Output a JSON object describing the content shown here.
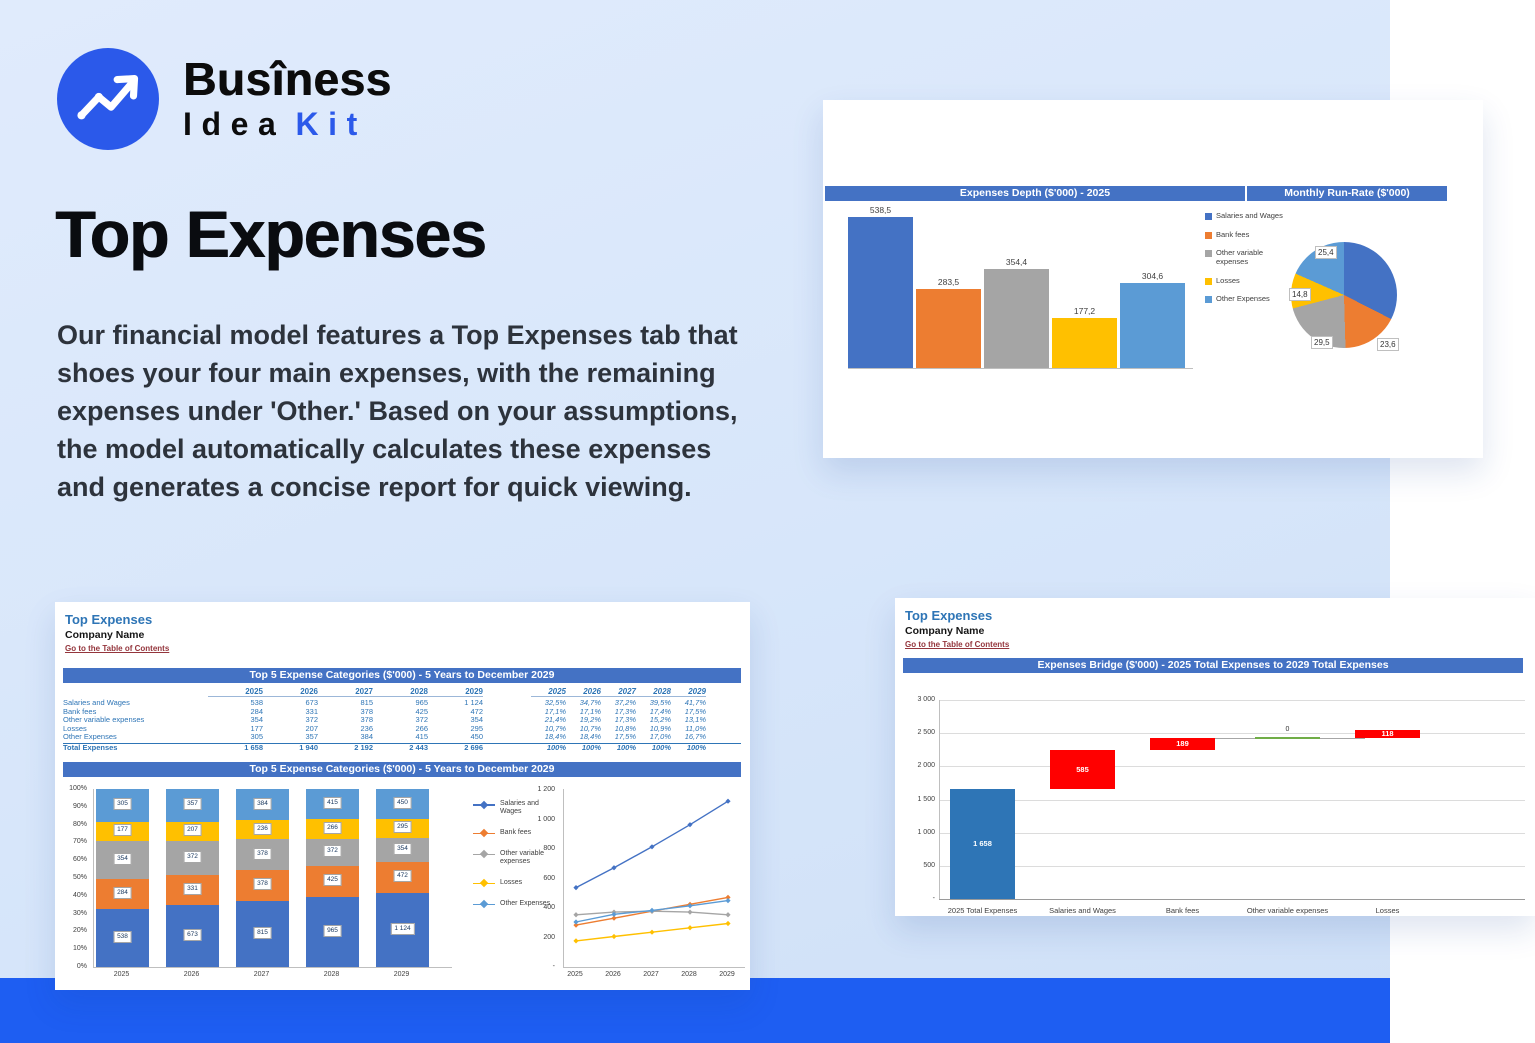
{
  "hero": {
    "logo": {
      "word1": "Busîness",
      "word2": "Idea",
      "word3": "Kit",
      "accent_color": "#2b59ea"
    },
    "title": "Top Expenses",
    "description": "Our financial model features a Top Expenses tab that shoes your four main expenses, with the remaining expenses under 'Other.' Based on your assumptions, the model automatically calculates these expenses and generates a concise report for quick viewing."
  },
  "depth_card": {
    "bar_header": "Expenses Depth ($'000) - 2025",
    "pie_header": "Monthly Run-Rate ($'000)"
  },
  "five_year_card": {
    "title": "Top Expenses",
    "company": "Company Name",
    "toc_link": "Go to the Table of Contents",
    "table_header": "Top 5 Expense Categories ($'000) - 5 Years to December 2029",
    "chart_header": "Top 5 Expense Categories ($'000) - 5 Years to December 2029",
    "years": [
      "2025",
      "2026",
      "2027",
      "2028",
      "2029"
    ],
    "rows": [
      {
        "label": "Salaries and Wages",
        "values": [
          "538",
          "673",
          "815",
          "965",
          "1 124"
        ],
        "pct": [
          "32,5%",
          "34,7%",
          "37,2%",
          "39,5%",
          "41,7%"
        ]
      },
      {
        "label": "Bank fees",
        "values": [
          "284",
          "331",
          "378",
          "425",
          "472"
        ],
        "pct": [
          "17,1%",
          "17,1%",
          "17,3%",
          "17,4%",
          "17,5%"
        ]
      },
      {
        "label": "Other variable expenses",
        "values": [
          "354",
          "372",
          "378",
          "372",
          "354"
        ],
        "pct": [
          "21,4%",
          "19,2%",
          "17,3%",
          "15,2%",
          "13,1%"
        ]
      },
      {
        "label": "Losses",
        "values": [
          "177",
          "207",
          "236",
          "266",
          "295"
        ],
        "pct": [
          "10,7%",
          "10,7%",
          "10,8%",
          "10,9%",
          "11,0%"
        ]
      },
      {
        "label": "Other Expenses",
        "values": [
          "305",
          "357",
          "384",
          "415",
          "450"
        ],
        "pct": [
          "18,4%",
          "18,4%",
          "17,5%",
          "17,0%",
          "16,7%"
        ]
      }
    ],
    "total": {
      "label": "Total Expenses",
      "values": [
        "1 658",
        "1 940",
        "2 192",
        "2 443",
        "2 696"
      ],
      "pct": [
        "100%",
        "100%",
        "100%",
        "100%",
        "100%"
      ]
    }
  },
  "bridge_card": {
    "title": "Top Expenses",
    "company": "Company Name",
    "toc_link": "Go to the Table of Contents",
    "header": "Expenses Bridge ($'000) - 2025 Total Expenses to 2029 Total Expenses"
  },
  "chart_data": [
    {
      "id": "expenses-depth-bar",
      "type": "bar",
      "title": "Expenses Depth ($'000) - 2025",
      "categories": [
        "Salaries and Wages",
        "Bank fees",
        "Other variable expenses",
        "Losses",
        "Other Expenses"
      ],
      "values": [
        538.5,
        283.5,
        354.4,
        177.2,
        304.6
      ],
      "labels": [
        "538,5",
        "283,5",
        "354,4",
        "177,2",
        "304,6"
      ],
      "colors": [
        "#4472C4",
        "#ED7D31",
        "#A5A5A5",
        "#FFC000",
        "#5B9BD5"
      ],
      "ylim": [
        0,
        600
      ],
      "grid": false,
      "legend_position": "right"
    },
    {
      "id": "monthly-run-rate-pie",
      "type": "pie",
      "title": "Monthly Run-Rate ($'000)",
      "labels": [
        "Salaries and Wages",
        "Bank fees",
        "Other variable expenses",
        "Losses",
        "Other Expenses"
      ],
      "values": [
        44.9,
        23.6,
        29.5,
        14.8,
        25.4
      ],
      "visible_labels": [
        "25,4",
        "14,8",
        "29,5",
        "23,6"
      ],
      "visible_label_slices": [
        "Other Expenses",
        "Losses",
        "Other variable expenses",
        "Bank fees"
      ],
      "colors": [
        "#4472C4",
        "#ED7D31",
        "#A5A5A5",
        "#FFC000",
        "#5B9BD5"
      ]
    },
    {
      "id": "five-year-stacked-bars",
      "type": "bar",
      "subtype": "stacked-100pct",
      "title": "Top 5 Expense Categories ($'000) - 5 Years to December 2029",
      "categories": [
        "2025",
        "2026",
        "2027",
        "2028",
        "2029"
      ],
      "series": [
        {
          "name": "Salaries and Wages",
          "color": "#4472C4",
          "values": [
            538,
            673,
            815,
            965,
            1124
          ],
          "labels": [
            "538",
            "673",
            "815",
            "965",
            "1 124"
          ]
        },
        {
          "name": "Bank fees",
          "color": "#ED7D31",
          "values": [
            284,
            331,
            378,
            425,
            472
          ],
          "labels": [
            "284",
            "331",
            "378",
            "425",
            "472"
          ]
        },
        {
          "name": "Other variable expenses",
          "color": "#A5A5A5",
          "values": [
            354,
            372,
            378,
            372,
            354
          ],
          "labels": [
            "354",
            "372",
            "378",
            "372",
            "354"
          ]
        },
        {
          "name": "Losses",
          "color": "#FFC000",
          "values": [
            177,
            207,
            236,
            266,
            295
          ],
          "labels": [
            "177",
            "207",
            "236",
            "266",
            "295"
          ]
        },
        {
          "name": "Other Expenses",
          "color": "#5B9BD5",
          "values": [
            305,
            357,
            384,
            415,
            450
          ],
          "labels": [
            "305",
            "357",
            "384",
            "415",
            "450"
          ]
        }
      ],
      "yticks": [
        "100%",
        "90%",
        "80%",
        "70%",
        "60%",
        "50%",
        "40%",
        "30%",
        "20%",
        "10%",
        "0%"
      ],
      "grid": false
    },
    {
      "id": "five-year-lines",
      "type": "line",
      "x": [
        "2025",
        "2026",
        "2027",
        "2028",
        "2029"
      ],
      "series": [
        {
          "name": "Salaries and Wages",
          "color": "#4472C4",
          "values": [
            538,
            673,
            815,
            965,
            1124
          ]
        },
        {
          "name": "Bank fees",
          "color": "#ED7D31",
          "values": [
            284,
            331,
            378,
            425,
            472
          ]
        },
        {
          "name": "Other variable expenses",
          "color": "#A5A5A5",
          "values": [
            354,
            372,
            378,
            372,
            354
          ]
        },
        {
          "name": "Losses",
          "color": "#FFC000",
          "values": [
            177,
            207,
            236,
            266,
            295
          ]
        },
        {
          "name": "Other Expenses",
          "color": "#5B9BD5",
          "values": [
            305,
            357,
            384,
            415,
            450
          ]
        }
      ],
      "ylim": [
        0,
        1200
      ],
      "ytick_labels": [
        "1 200",
        "1 000",
        "800",
        "600",
        "400",
        "200",
        "-"
      ],
      "ytick_values": [
        1200,
        1000,
        800,
        600,
        400,
        200,
        0
      ],
      "legend_position": "left"
    },
    {
      "id": "expenses-bridge-waterfall",
      "type": "bar",
      "subtype": "waterfall",
      "title": "Expenses Bridge ($'000) - 2025 Total Expenses to 2029 Total Expenses",
      "categories": [
        "2025 Total Expenses",
        "Salaries and Wages",
        "Bank fees",
        "Other variable expenses",
        "Losses"
      ],
      "values": [
        1658,
        585,
        189,
        0,
        118
      ],
      "labels": [
        "1 658",
        "585",
        "189",
        "0",
        "118"
      ],
      "bar_roles": [
        "base",
        "increase",
        "increase",
        "zero",
        "increase"
      ],
      "colors": {
        "base": "#2E75B6",
        "increase": "#FF0000",
        "zero": "#70AD47"
      },
      "ylim": [
        0,
        3000
      ],
      "yticks": [
        {
          "label": "3 000",
          "value": 3000
        },
        {
          "label": "2 500",
          "value": 2500
        },
        {
          "label": "2 000",
          "value": 2000
        },
        {
          "label": "1 500",
          "value": 1500
        },
        {
          "label": "1 000",
          "value": 1000
        },
        {
          "label": "500",
          "value": 500
        },
        {
          "label": "-",
          "value": 0
        }
      ],
      "grid": true
    }
  ]
}
